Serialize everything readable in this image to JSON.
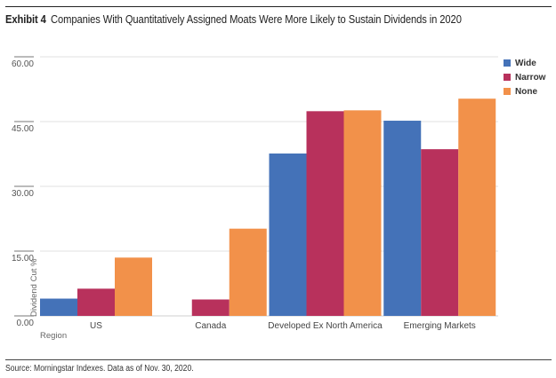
{
  "header": {
    "exhibit": "Exhibit 4",
    "title": "Companies With Quantitatively Assigned Moats Were More Likely to Sustain Dividends in 2020"
  },
  "footer": {
    "source": "Source: Morningstar Indexes. Data as of Nov. 30, 2020."
  },
  "chart_data": {
    "type": "bar",
    "title": "Companies With Quantitatively Assigned Moats Were More Likely to Sustain Dividends in 2020",
    "xlabel": "Region",
    "ylabel": "Dividend Cut %",
    "ylim": [
      0,
      60
    ],
    "yticks": [
      0,
      15,
      30,
      45,
      60
    ],
    "ytick_labels": [
      "0.00",
      "15.00",
      "30.00",
      "45.00",
      "60.00"
    ],
    "grid": true,
    "legend_position": "top-right",
    "categories": [
      "US",
      "Canada",
      "Developed Ex North America",
      "Emerging Markets"
    ],
    "series": [
      {
        "name": "Wide",
        "color": "#4472B8",
        "values": [
          4.0,
          0.0,
          37.6,
          45.2
        ]
      },
      {
        "name": "Narrow",
        "color": "#B8315C",
        "values": [
          6.3,
          3.8,
          47.4,
          38.6
        ]
      },
      {
        "name": "None",
        "color": "#F2914A",
        "values": [
          13.5,
          20.2,
          47.6,
          50.3
        ]
      }
    ]
  }
}
